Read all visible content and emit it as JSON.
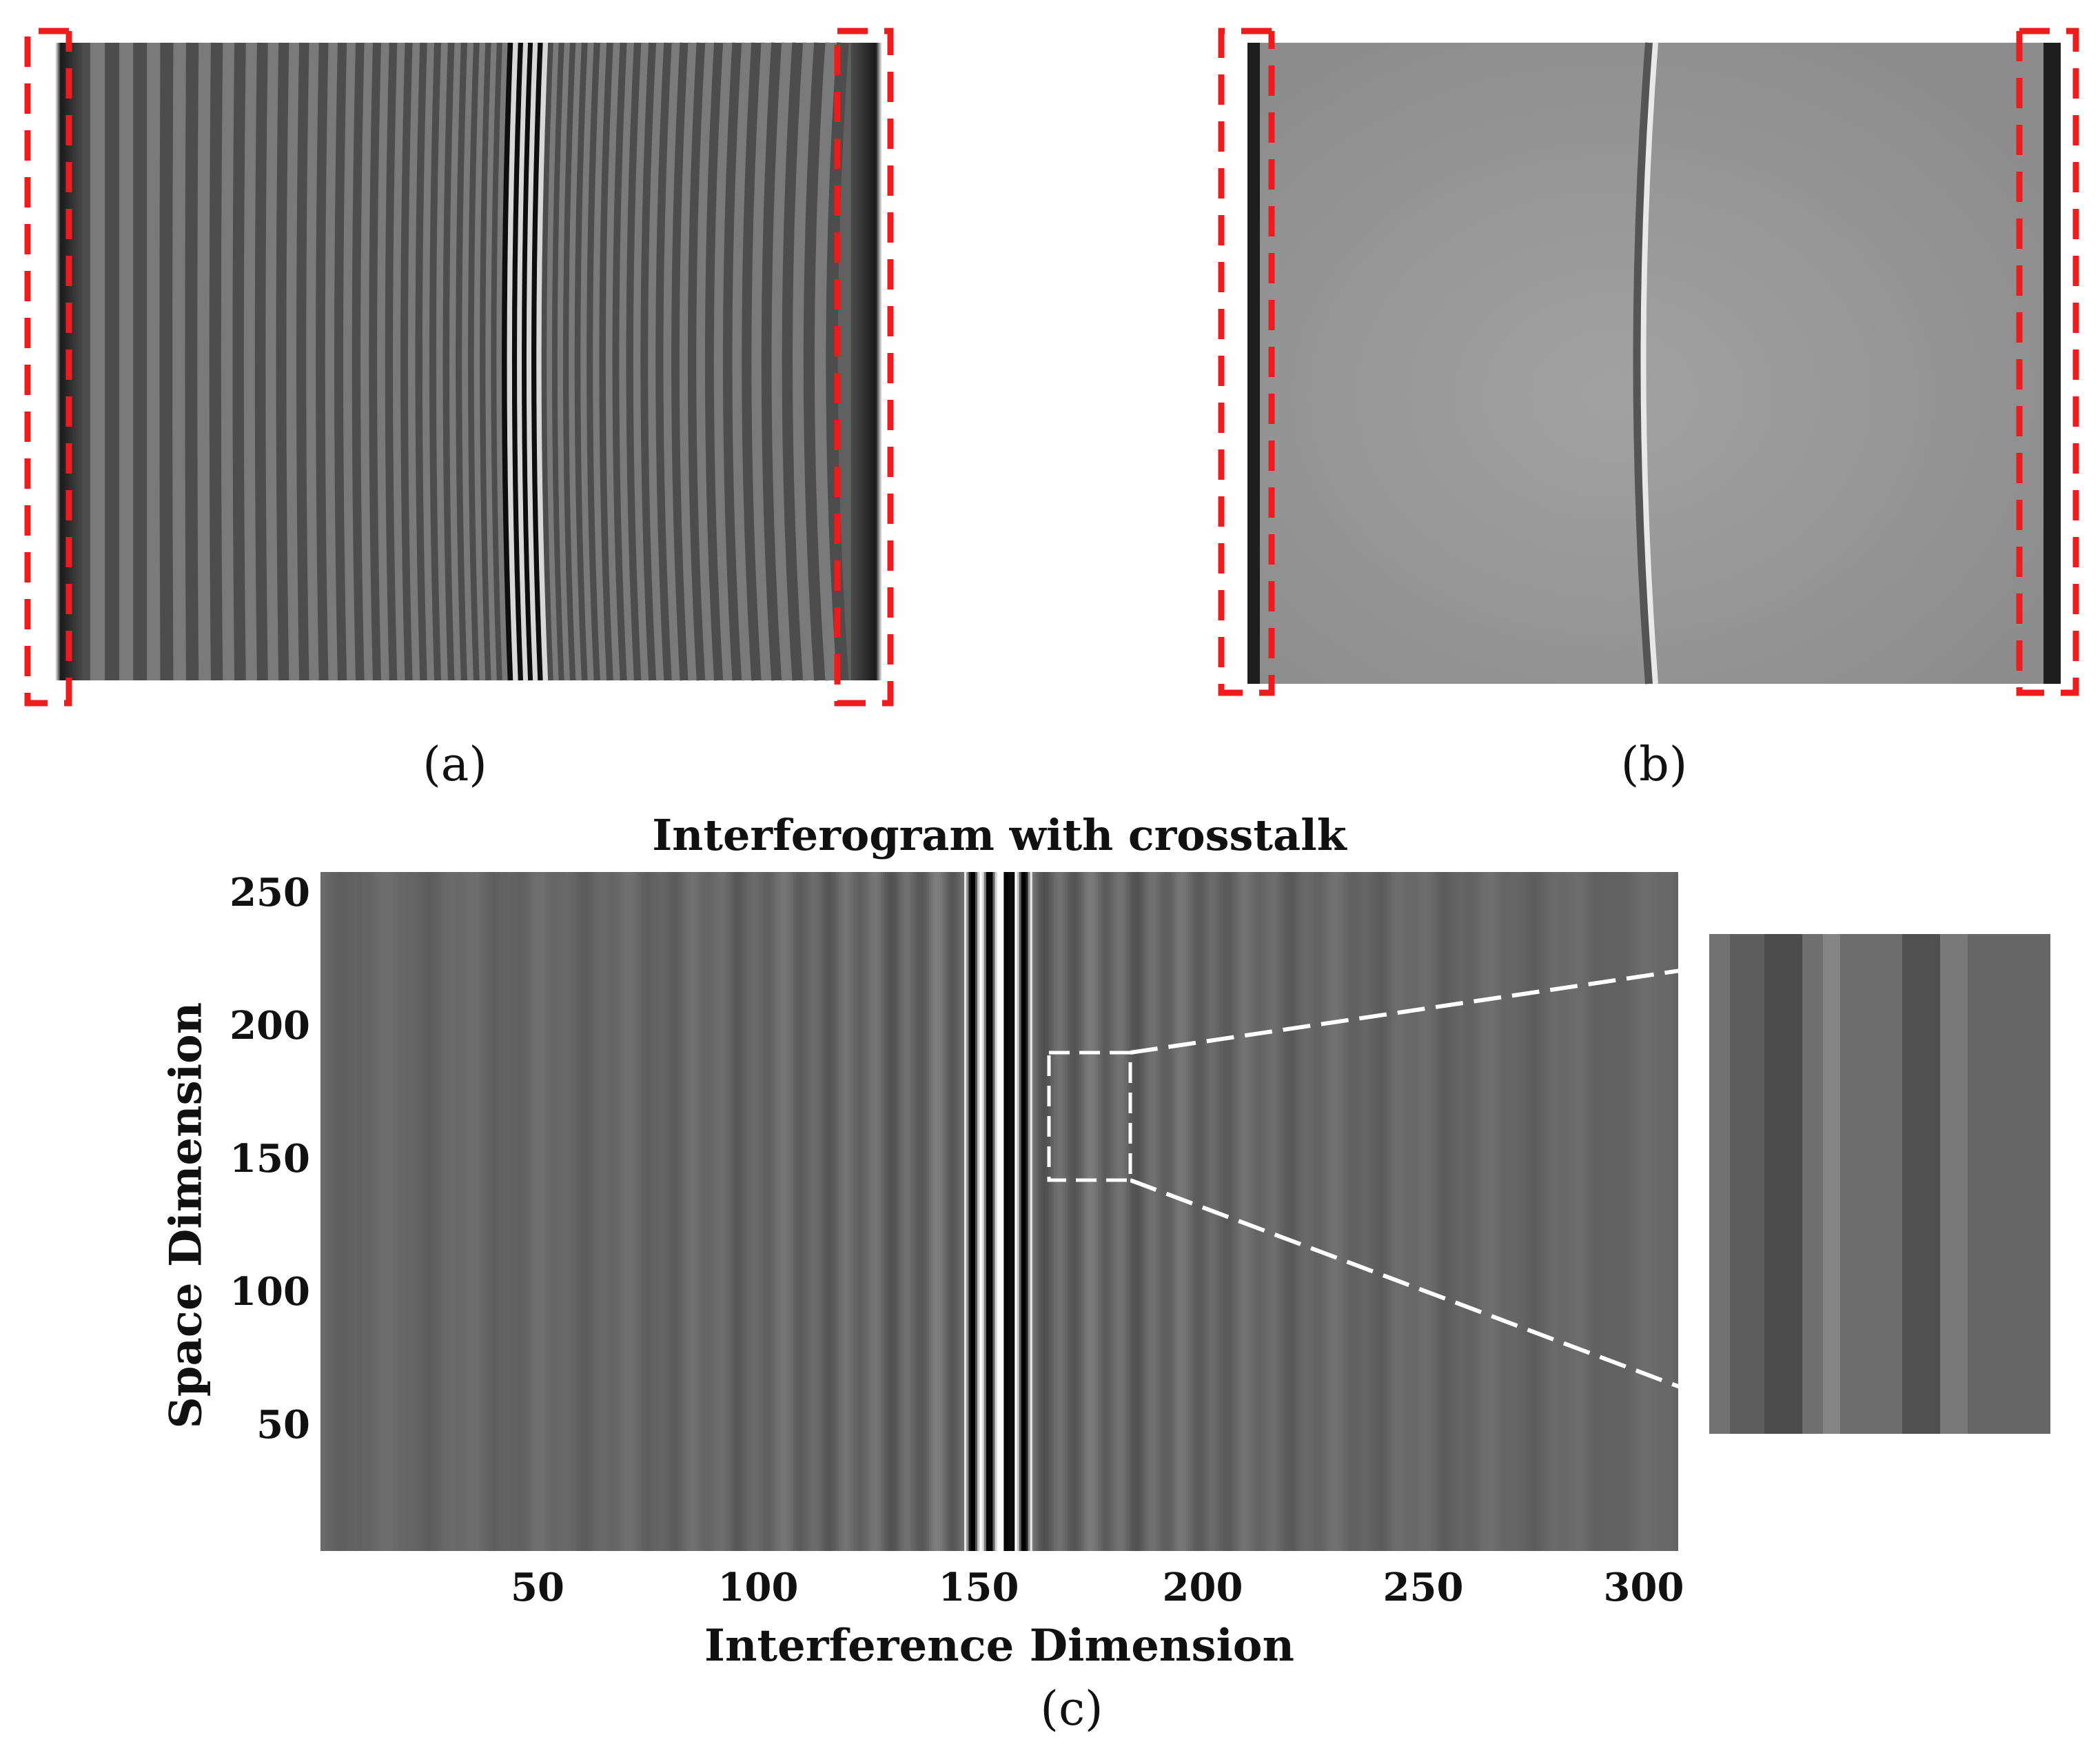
{
  "captions": {
    "a": "(a)",
    "b": "(b)",
    "c": "(c)"
  },
  "panel_c": {
    "title": "Interferogram with crosstalk",
    "xlabel": "Interference Dimension",
    "ylabel": "Space Dimension"
  },
  "chart_data": {
    "type": "heatmap",
    "title": "Interferogram with crosstalk",
    "xlabel": "Interference Dimension",
    "ylabel": "Space Dimension",
    "xlim": [
      1,
      310
    ],
    "ylim": [
      1,
      256
    ],
    "xticks": [
      50,
      100,
      150,
      200,
      250,
      300
    ],
    "yticks": [
      50,
      100,
      150,
      200,
      250
    ],
    "colormap": "gray",
    "zoom_region": {
      "x": [
        166,
        185
      ],
      "y": [
        138,
        187
      ]
    }
  },
  "colors": {
    "highlight": "#ee1c1c",
    "zoom_marker": "#ffffff",
    "background": "#ffffff"
  }
}
